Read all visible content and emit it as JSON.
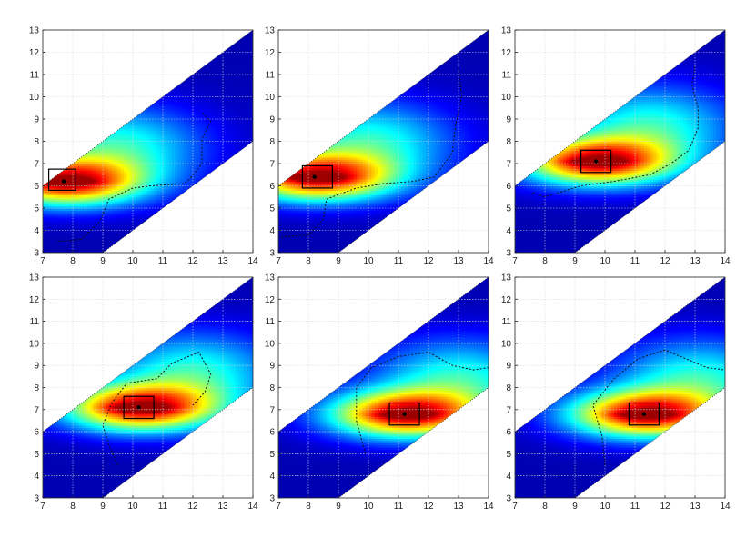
{
  "chart_data": [
    {
      "type": "heatmap",
      "xlim": [
        7,
        14
      ],
      "ylim": [
        3,
        13
      ],
      "xticks": [
        "7",
        "8",
        "9",
        "10",
        "11",
        "12",
        "13",
        "14"
      ],
      "yticks": [
        "3",
        "4",
        "5",
        "6",
        "7",
        "8",
        "9",
        "10",
        "11",
        "12",
        "13"
      ],
      "grid": true,
      "colormap": "jet",
      "marker": {
        "x": 7.7,
        "y": 6.2
      },
      "box": {
        "x0": 7.2,
        "x1": 8.1,
        "y0": 5.8,
        "y1": 6.75
      },
      "contour": [
        [
          7.5,
          3.5
        ],
        [
          8.3,
          3.6
        ],
        [
          8.9,
          4.4
        ],
        [
          9.2,
          5.4
        ],
        [
          10.0,
          5.9
        ],
        [
          10.6,
          6.0
        ],
        [
          11.7,
          6.1
        ],
        [
          11.9,
          6.3
        ],
        [
          12.3,
          7.0
        ],
        [
          12.3,
          8.1
        ],
        [
          12.6,
          8.9
        ],
        [
          12.3,
          9.3
        ]
      ]
    },
    {
      "type": "heatmap",
      "xlim": [
        7,
        14
      ],
      "ylim": [
        3,
        13
      ],
      "xticks": [
        "7",
        "8",
        "9",
        "10",
        "11",
        "12",
        "13",
        "14"
      ],
      "yticks": [
        "3",
        "4",
        "5",
        "6",
        "7",
        "8",
        "9",
        "10",
        "11",
        "12",
        "13"
      ],
      "grid": true,
      "colormap": "jet",
      "marker": {
        "x": 8.2,
        "y": 6.4
      },
      "box": {
        "x0": 7.8,
        "x1": 8.8,
        "y0": 5.9,
        "y1": 6.9
      },
      "contour": [
        [
          7.1,
          3.7
        ],
        [
          8.0,
          3.8
        ],
        [
          8.5,
          4.5
        ],
        [
          8.6,
          5.4
        ],
        [
          9.6,
          5.9
        ],
        [
          10.5,
          6.1
        ],
        [
          11.5,
          6.2
        ],
        [
          12.2,
          6.4
        ],
        [
          12.8,
          7.5
        ],
        [
          12.9,
          8.7
        ],
        [
          13.1,
          10.0
        ],
        [
          13.0,
          11.3
        ]
      ]
    },
    {
      "type": "heatmap",
      "xlim": [
        7,
        14
      ],
      "ylim": [
        3,
        13
      ],
      "xticks": [
        "7",
        "8",
        "9",
        "10",
        "11",
        "12",
        "13",
        "14"
      ],
      "yticks": [
        "3",
        "4",
        "5",
        "6",
        "7",
        "8",
        "9",
        "10",
        "11",
        "12",
        "13"
      ],
      "grid": true,
      "colormap": "jet",
      "marker": {
        "x": 9.7,
        "y": 7.1
      },
      "box": {
        "x0": 9.2,
        "x1": 10.2,
        "y0": 6.6,
        "y1": 7.6
      },
      "contour": [
        [
          7.6,
          5.7
        ],
        [
          8.0,
          5.5
        ],
        [
          9.2,
          6.0
        ],
        [
          10.3,
          6.2
        ],
        [
          11.5,
          6.5
        ],
        [
          12.2,
          7.0
        ],
        [
          12.8,
          7.6
        ],
        [
          13.1,
          8.6
        ],
        [
          13.1,
          9.5
        ],
        [
          12.9,
          10.5
        ],
        [
          13.0,
          11.4
        ]
      ]
    },
    {
      "type": "heatmap",
      "xlim": [
        7,
        14
      ],
      "ylim": [
        3,
        13
      ],
      "xticks": [
        "7",
        "8",
        "9",
        "10",
        "11",
        "12",
        "13",
        "14"
      ],
      "yticks": [
        "3",
        "4",
        "5",
        "6",
        "7",
        "8",
        "9",
        "10",
        "11",
        "12",
        "13"
      ],
      "grid": true,
      "colormap": "jet",
      "marker": {
        "x": 10.2,
        "y": 7.1
      },
      "box": {
        "x0": 9.7,
        "x1": 10.7,
        "y0": 6.6,
        "y1": 7.6
      },
      "contour": [
        [
          9.5,
          4.5
        ],
        [
          9.2,
          5.4
        ],
        [
          9.0,
          6.3
        ],
        [
          9.3,
          7.3
        ],
        [
          9.8,
          8.2
        ],
        [
          10.8,
          8.4
        ],
        [
          11.3,
          9.1
        ],
        [
          12.2,
          9.6
        ],
        [
          12.6,
          8.6
        ],
        [
          12.4,
          7.8
        ],
        [
          12.0,
          7.2
        ]
      ]
    },
    {
      "type": "heatmap",
      "xlim": [
        7,
        14
      ],
      "ylim": [
        3,
        13
      ],
      "xticks": [
        "7",
        "8",
        "9",
        "10",
        "11",
        "12",
        "13",
        "14"
      ],
      "yticks": [
        "3",
        "4",
        "5",
        "6",
        "7",
        "8",
        "9",
        "10",
        "11",
        "12",
        "13"
      ],
      "grid": true,
      "colormap": "jet",
      "marker": {
        "x": 11.2,
        "y": 6.8
      },
      "box": {
        "x0": 10.7,
        "x1": 11.7,
        "y0": 6.3,
        "y1": 7.3
      },
      "contour": [
        [
          9.9,
          5.0
        ],
        [
          9.6,
          6.5
        ],
        [
          9.6,
          8.0
        ],
        [
          10.1,
          8.9
        ],
        [
          11.0,
          9.4
        ],
        [
          12.0,
          9.6
        ],
        [
          12.8,
          9.0
        ],
        [
          13.5,
          8.8
        ],
        [
          14.0,
          8.9
        ]
      ]
    },
    {
      "type": "heatmap",
      "xlim": [
        7,
        14
      ],
      "ylim": [
        3,
        13
      ],
      "xticks": [
        "7",
        "8",
        "9",
        "10",
        "11",
        "12",
        "13",
        "14"
      ],
      "yticks": [
        "3",
        "4",
        "5",
        "6",
        "7",
        "8",
        "9",
        "10",
        "11",
        "12",
        "13"
      ],
      "grid": true,
      "colormap": "jet",
      "marker": {
        "x": 11.3,
        "y": 6.8
      },
      "box": {
        "x0": 10.8,
        "x1": 11.8,
        "y0": 6.3,
        "y1": 7.3
      },
      "contour": [
        [
          10.0,
          4.5
        ],
        [
          9.9,
          5.8
        ],
        [
          9.6,
          7.2
        ],
        [
          10.3,
          8.4
        ],
        [
          11.1,
          9.3
        ],
        [
          12.0,
          9.7
        ],
        [
          12.7,
          9.3
        ],
        [
          13.4,
          8.9
        ],
        [
          14.0,
          8.8
        ]
      ]
    }
  ]
}
